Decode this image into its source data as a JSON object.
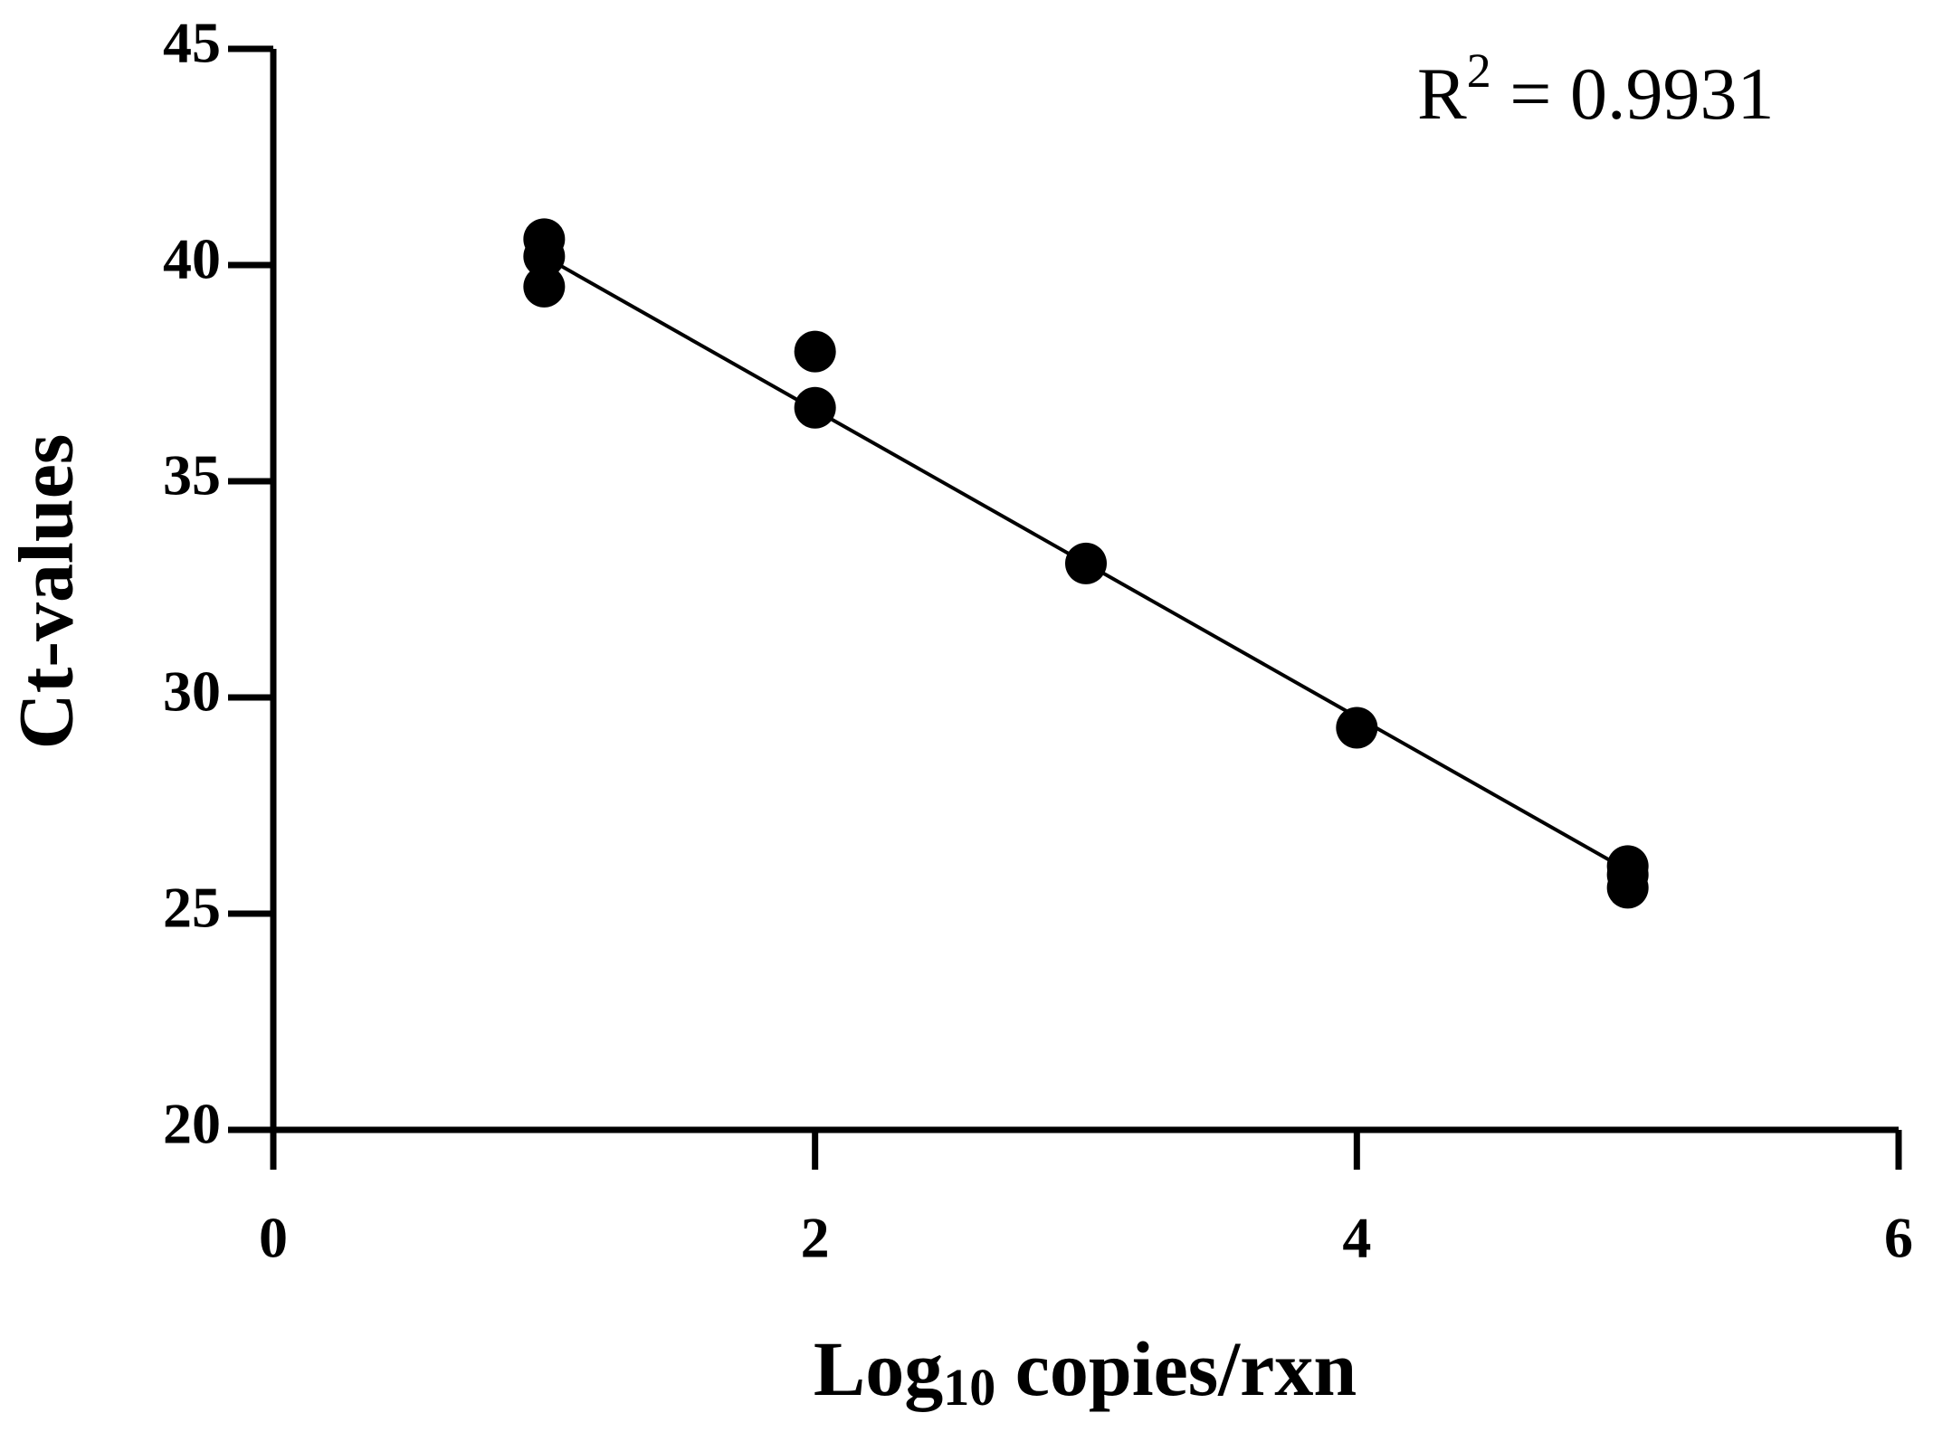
{
  "chart_data": {
    "type": "scatter",
    "y_label": "Ct-values",
    "x_label": {
      "base": "Log",
      "subscript": "10",
      "rest": " copies/rxn"
    },
    "annotation": {
      "base": "R",
      "superscript": "2",
      "rest": " = 0.9931"
    },
    "x": [
      1,
      1,
      1,
      2,
      2,
      3,
      4,
      5,
      5,
      5
    ],
    "values": [
      40.6,
      40.2,
      39.5,
      38.0,
      36.7,
      33.1,
      29.3,
      26.1,
      25.9,
      25.6
    ],
    "color": "#000000",
    "trendline": {
      "x": [
        1,
        5
      ],
      "values": [
        40.2,
        26.0
      ],
      "color": "#000000"
    },
    "xlim": [
      0,
      6
    ],
    "xticks": [
      0,
      2,
      4,
      6
    ],
    "ylim": [
      20,
      45
    ],
    "yticks": [
      20,
      25,
      30,
      35,
      40,
      45
    ]
  }
}
